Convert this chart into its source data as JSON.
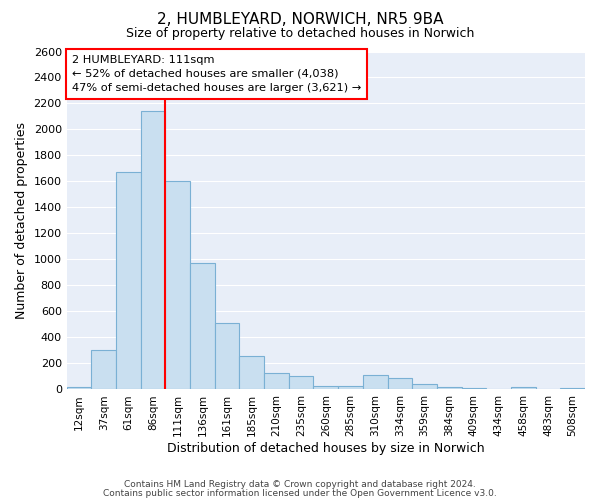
{
  "title": "2, HUMBLEYARD, NORWICH, NR5 9BA",
  "subtitle": "Size of property relative to detached houses in Norwich",
  "xlabel": "Distribution of detached houses by size in Norwich",
  "ylabel": "Number of detached properties",
  "bin_labels": [
    "12sqm",
    "37sqm",
    "61sqm",
    "86sqm",
    "111sqm",
    "136sqm",
    "161sqm",
    "185sqm",
    "210sqm",
    "235sqm",
    "260sqm",
    "285sqm",
    "310sqm",
    "334sqm",
    "359sqm",
    "384sqm",
    "409sqm",
    "434sqm",
    "458sqm",
    "483sqm",
    "508sqm"
  ],
  "bar_heights": [
    20,
    300,
    1670,
    2140,
    1600,
    970,
    510,
    255,
    125,
    100,
    30,
    30,
    115,
    85,
    40,
    18,
    10,
    5,
    20,
    5,
    10
  ],
  "bar_color": "#c9dff0",
  "bar_edge_color": "#7ab0d4",
  "plot_bg_color": "#e8eef8",
  "fig_bg_color": "#ffffff",
  "grid_color": "#ffffff",
  "red_line_bin": 4,
  "annotation_text_line1": "2 HUMBLEYARD: 111sqm",
  "annotation_text_line2": "← 52% of detached houses are smaller (4,038)",
  "annotation_text_line3": "47% of semi-detached houses are larger (3,621) →",
  "ylim": [
    0,
    2600
  ],
  "yticks": [
    0,
    200,
    400,
    600,
    800,
    1000,
    1200,
    1400,
    1600,
    1800,
    2000,
    2200,
    2400,
    2600
  ],
  "footer_line1": "Contains HM Land Registry data © Crown copyright and database right 2024.",
  "footer_line2": "Contains public sector information licensed under the Open Government Licence v3.0."
}
